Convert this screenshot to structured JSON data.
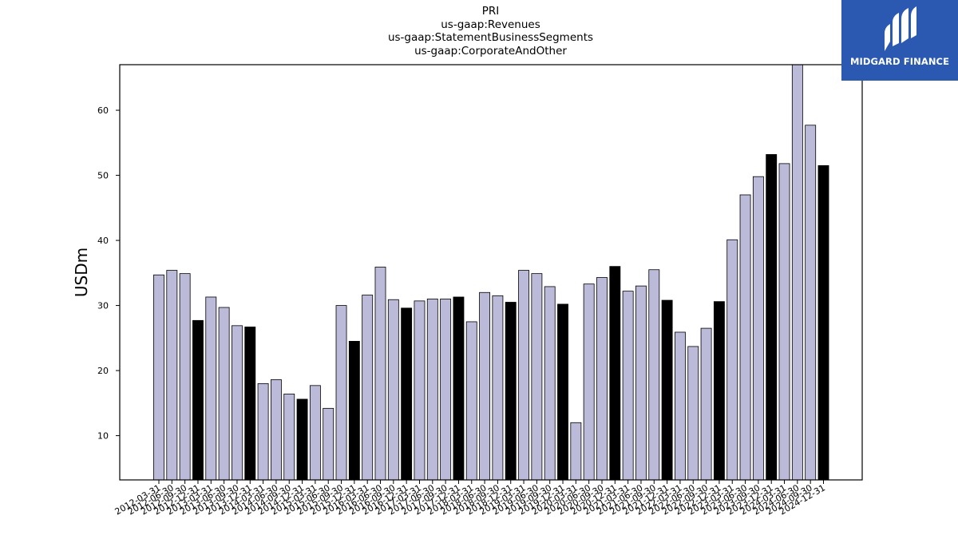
{
  "title_lines": [
    "PRI",
    "us-gaap:Revenues",
    "us-gaap:StatementBusinessSegments",
    "us-gaap:CorporateAndOther"
  ],
  "logo": {
    "text": "MIDGARD FINANCE",
    "color": "#2b58b0"
  },
  "chart_data": {
    "type": "bar",
    "ylabel": "USDm",
    "xlabel": "",
    "ylim": [
      3.2,
      67
    ],
    "yticks": [
      10,
      20,
      30,
      40,
      50,
      60
    ],
    "grid": false,
    "colors": {
      "quarter": "#bcbad9",
      "year_end": "#000000"
    },
    "categories": [
      "2012-03-31",
      "2012-06-30",
      "2012-09-30",
      "2012-12-31",
      "2013-03-31",
      "2013-06-30",
      "2013-09-30",
      "2013-12-31",
      "2014-03-31",
      "2014-06-30",
      "2014-09-30",
      "2014-12-31",
      "2015-03-31",
      "2015-06-30",
      "2015-09-30",
      "2015-12-31",
      "2016-03-31",
      "2016-06-30",
      "2016-09-30",
      "2016-12-31",
      "2017-03-31",
      "2017-06-30",
      "2017-09-30",
      "2017-12-31",
      "2018-03-31",
      "2018-06-30",
      "2018-09-30",
      "2018-12-31",
      "2019-03-31",
      "2019-06-30",
      "2019-09-30",
      "2019-12-31",
      "2020-03-31",
      "2020-06-30",
      "2020-09-30",
      "2020-12-31",
      "2021-03-31",
      "2021-06-30",
      "2021-09-30",
      "2021-12-31",
      "2022-03-31",
      "2022-06-30",
      "2022-09-30",
      "2022-12-31",
      "2023-03-31",
      "2023-06-30",
      "2023-09-30",
      "2023-12-31",
      "2024-03-31",
      "2024-06-30",
      "2024-09-30",
      "2024-12-31"
    ],
    "values": [
      34.7,
      35.4,
      34.9,
      27.7,
      31.3,
      29.7,
      26.9,
      26.7,
      18.0,
      18.6,
      16.4,
      15.6,
      17.7,
      14.2,
      30.0,
      24.5,
      31.6,
      35.9,
      30.9,
      29.6,
      30.7,
      31.0,
      31.0,
      31.3,
      27.5,
      32.0,
      31.5,
      30.5,
      35.4,
      34.9,
      32.9,
      30.2,
      12.0,
      33.3,
      34.3,
      36.0,
      32.2,
      33.0,
      35.5,
      30.8,
      25.9,
      23.7,
      26.5,
      30.6,
      40.1,
      47.0,
      49.8,
      53.2,
      51.8,
      67.0,
      57.7,
      51.5
    ],
    "highlight": [
      false,
      false,
      false,
      true,
      false,
      false,
      false,
      true,
      false,
      false,
      false,
      true,
      false,
      false,
      false,
      true,
      false,
      false,
      false,
      true,
      false,
      false,
      false,
      true,
      false,
      false,
      false,
      true,
      false,
      false,
      false,
      true,
      false,
      false,
      false,
      true,
      false,
      false,
      false,
      true,
      false,
      false,
      false,
      true,
      false,
      false,
      false,
      true,
      false,
      false,
      false,
      true
    ]
  }
}
